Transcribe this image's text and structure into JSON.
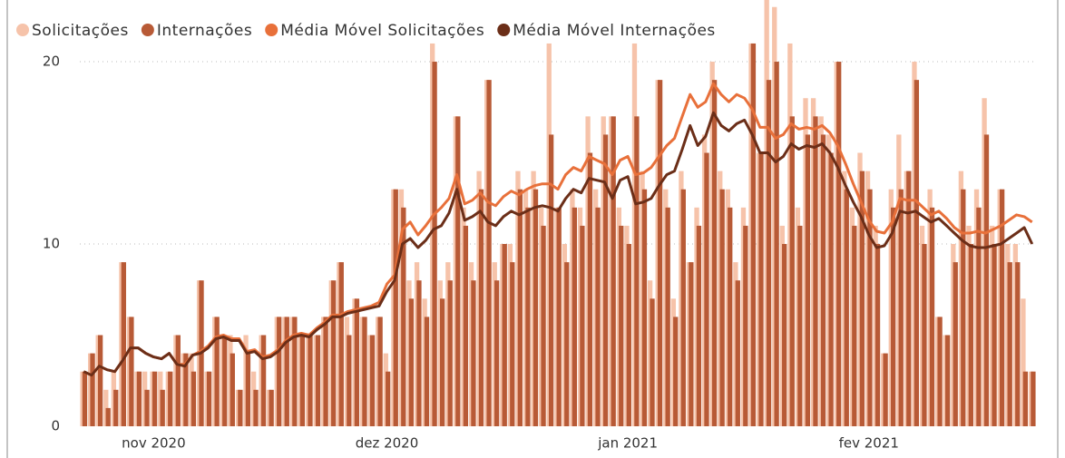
{
  "chart_data": {
    "type": "combo",
    "categories": [
      null,
      null,
      null,
      null,
      null,
      null,
      null,
      null,
      null,
      "nov 2020",
      null,
      null,
      null,
      null,
      null,
      null,
      null,
      null,
      null,
      null,
      null,
      null,
      null,
      null,
      null,
      null,
      null,
      null,
      null,
      null,
      null,
      null,
      null,
      null,
      null,
      null,
      null,
      null,
      null,
      "dez 2020",
      null,
      null,
      null,
      null,
      null,
      null,
      null,
      null,
      null,
      null,
      null,
      null,
      null,
      null,
      null,
      null,
      null,
      null,
      null,
      null,
      null,
      null,
      null,
      null,
      null,
      null,
      null,
      null,
      null,
      null,
      "jan 2021",
      null,
      null,
      null,
      null,
      null,
      null,
      null,
      null,
      null,
      null,
      null,
      null,
      null,
      null,
      null,
      null,
      null,
      null,
      null,
      null,
      null,
      null,
      null,
      null,
      null,
      null,
      null,
      null,
      null,
      null,
      "fev 2021",
      null,
      null,
      null,
      null,
      null,
      null,
      null,
      null,
      null,
      null,
      null,
      null,
      null,
      null,
      null,
      null,
      null,
      null,
      null,
      null,
      null
    ],
    "series": [
      {
        "name": "Solicitações",
        "type": "bar",
        "color": "#f6c3aa",
        "values": [
          3,
          4,
          5,
          2,
          3,
          9,
          6,
          3,
          3,
          3,
          3,
          3,
          5,
          4,
          4,
          8,
          3,
          6,
          5,
          5,
          2,
          5,
          3,
          5,
          2,
          6,
          6,
          6,
          5,
          5,
          5,
          6,
          8,
          9,
          6,
          7,
          6,
          5,
          6,
          4,
          13,
          13,
          8,
          9,
          7,
          21,
          8,
          9,
          17,
          12,
          9,
          14,
          19,
          9,
          10,
          10,
          14,
          13,
          14,
          12,
          21,
          12,
          10,
          13,
          12,
          17,
          13,
          17,
          17,
          12,
          11,
          21,
          14,
          8,
          19,
          13,
          7,
          14,
          9,
          12,
          16,
          20,
          14,
          13,
          9,
          12,
          21,
          15,
          25,
          23,
          11,
          21,
          12,
          18,
          18,
          17,
          16,
          20,
          14,
          12,
          15,
          14,
          11,
          4,
          13,
          16,
          14,
          20,
          11,
          13,
          6,
          5,
          10,
          14,
          11,
          13,
          18,
          11,
          13,
          10,
          10,
          7,
          3
        ]
      },
      {
        "name": "Internações",
        "type": "bar",
        "color": "#b85a36",
        "values": [
          3,
          4,
          5,
          1,
          2,
          9,
          6,
          3,
          2,
          3,
          2,
          3,
          5,
          4,
          3,
          8,
          3,
          6,
          5,
          4,
          2,
          4,
          2,
          5,
          2,
          6,
          6,
          6,
          5,
          5,
          5,
          6,
          8,
          9,
          5,
          7,
          6,
          5,
          6,
          3,
          13,
          12,
          7,
          8,
          6,
          20,
          7,
          8,
          17,
          11,
          8,
          13,
          19,
          8,
          10,
          9,
          13,
          12,
          13,
          11,
          16,
          12,
          9,
          12,
          11,
          15,
          12,
          16,
          17,
          11,
          10,
          17,
          13,
          7,
          19,
          12,
          6,
          13,
          9,
          11,
          15,
          19,
          13,
          12,
          8,
          11,
          21,
          15,
          19,
          20,
          10,
          17,
          11,
          16,
          17,
          16,
          15,
          20,
          13,
          11,
          14,
          13,
          10,
          4,
          12,
          13,
          14,
          19,
          10,
          12,
          6,
          5,
          9,
          13,
          10,
          12,
          16,
          10,
          13,
          9,
          9,
          3,
          3
        ]
      },
      {
        "name": "Média Móvel Solicitações",
        "type": "line",
        "color": "#e8703a",
        "values": [
          3.0,
          2.8,
          3.3,
          3.1,
          3.0,
          3.6,
          4.3,
          4.3,
          4.0,
          3.8,
          3.7,
          4.0,
          3.4,
          3.4,
          3.9,
          4.1,
          4.4,
          4.9,
          5.0,
          4.8,
          4.8,
          4.1,
          4.2,
          3.8,
          3.9,
          4.2,
          4.7,
          5.0,
          5.1,
          5.0,
          5.4,
          5.7,
          6.1,
          6.1,
          6.3,
          6.4,
          6.5,
          6.6,
          6.8,
          7.8,
          8.3,
          10.8,
          11.2,
          10.5,
          11.0,
          11.6,
          12.0,
          12.5,
          13.8,
          12.2,
          12.4,
          12.8,
          12.3,
          12.1,
          12.6,
          12.9,
          12.7,
          13.0,
          13.2,
          13.3,
          13.3,
          13.0,
          13.8,
          14.2,
          14.0,
          14.8,
          14.6,
          14.4,
          13.8,
          14.6,
          14.8,
          13.8,
          13.9,
          14.2,
          14.8,
          15.4,
          15.8,
          17.0,
          18.2,
          17.5,
          17.8,
          18.8,
          18.2,
          17.8,
          18.2,
          18.0,
          17.4,
          16.4,
          16.4,
          15.8,
          16.0,
          16.6,
          16.3,
          16.4,
          16.3,
          16.5,
          16.1,
          15.4,
          14.4,
          13.3,
          12.3,
          11.3,
          10.7,
          10.6,
          11.2,
          12.5,
          12.4,
          12.4,
          12.0,
          11.6,
          11.8,
          11.4,
          10.9,
          10.6,
          10.6,
          10.7,
          10.6,
          10.8,
          11.0,
          11.3,
          11.6,
          11.5,
          11.2
        ]
      },
      {
        "name": "Média Móvel Internações",
        "type": "line",
        "color": "#6b2e18",
        "values": [
          3.0,
          2.8,
          3.3,
          3.1,
          3.0,
          3.6,
          4.3,
          4.3,
          4.0,
          3.8,
          3.7,
          4.0,
          3.4,
          3.3,
          3.9,
          4.0,
          4.3,
          4.8,
          4.9,
          4.7,
          4.7,
          4.0,
          4.1,
          3.7,
          3.8,
          4.1,
          4.6,
          4.9,
          5.0,
          4.9,
          5.3,
          5.6,
          6.0,
          6.0,
          6.2,
          6.3,
          6.4,
          6.5,
          6.6,
          7.4,
          8.0,
          10.0,
          10.3,
          9.8,
          10.2,
          10.8,
          11.0,
          11.7,
          13.0,
          11.3,
          11.5,
          11.8,
          11.2,
          11.0,
          11.5,
          11.8,
          11.6,
          11.8,
          12.0,
          12.1,
          12.0,
          11.8,
          12.5,
          13.0,
          12.8,
          13.6,
          13.5,
          13.4,
          12.5,
          13.5,
          13.7,
          12.2,
          12.3,
          12.5,
          13.2,
          13.8,
          14.0,
          15.2,
          16.5,
          15.4,
          15.9,
          17.2,
          16.5,
          16.2,
          16.6,
          16.8,
          16.0,
          15.0,
          15.0,
          14.5,
          14.8,
          15.5,
          15.2,
          15.4,
          15.3,
          15.5,
          15.0,
          14.2,
          13.2,
          12.3,
          11.5,
          10.5,
          9.8,
          9.9,
          10.6,
          11.8,
          11.7,
          11.8,
          11.5,
          11.2,
          11.4,
          11.0,
          10.6,
          10.2,
          9.9,
          9.8,
          9.8,
          9.9,
          10.0,
          10.3,
          10.6,
          10.9,
          10.0
        ]
      }
    ],
    "ylim": [
      0,
      20.4
    ],
    "yticks": [
      0,
      10,
      20
    ],
    "grid": true
  }
}
